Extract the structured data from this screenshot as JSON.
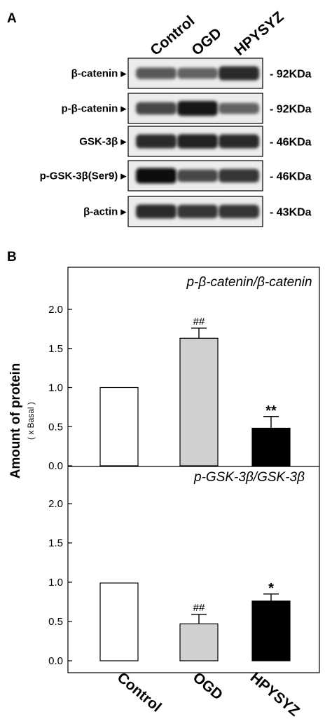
{
  "panel_a": {
    "letter": "A",
    "lanes": [
      "Control",
      "OGD",
      "HPYSYZ"
    ],
    "rows": [
      {
        "label": "β-catenin ▸",
        "kda": "- 92KDa",
        "intensity": [
          0.6,
          0.55,
          0.85
        ]
      },
      {
        "label": "p-β-catenin ▸",
        "kda": "- 92KDa",
        "intensity": [
          0.7,
          0.95,
          0.55
        ]
      },
      {
        "label": "GSK-3β ▸",
        "kda": "- 46KDa",
        "intensity": [
          0.85,
          0.9,
          0.85
        ]
      },
      {
        "label": "p-GSK-3β(Ser9) ▸",
        "kda": "- 46KDa",
        "intensity": [
          1.0,
          0.7,
          0.8
        ]
      },
      {
        "label": "β-actin ▸",
        "kda": "- 43KDa",
        "intensity": [
          0.85,
          0.8,
          0.8
        ]
      }
    ]
  },
  "panel_b": {
    "letter": "B",
    "ylabel": "Amount of protein",
    "ylabel_sub": "( x Basal )",
    "categories": [
      "Control",
      "OGD",
      "HPYSYZ"
    ]
  },
  "chart_data": [
    {
      "type": "bar",
      "title": "p-β-catenin/β-catenin",
      "categories": [
        "Control",
        "OGD",
        "HPYSYZ"
      ],
      "values": [
        1.0,
        1.63,
        0.48
      ],
      "errors": [
        0,
        0.13,
        0.15
      ],
      "annotations": [
        "",
        "##",
        "**"
      ],
      "bar_colors": [
        "#ffffff",
        "#d0d0d0",
        "#000000"
      ],
      "ylim": [
        0,
        2.0
      ],
      "yticks": [
        "0.0",
        "0.5",
        "1.0",
        "1.5",
        "2.0"
      ]
    },
    {
      "type": "bar",
      "title": "p-GSK-3β/GSK-3β",
      "categories": [
        "Control",
        "OGD",
        "HPYSYZ"
      ],
      "values": [
        0.99,
        0.47,
        0.76
      ],
      "errors": [
        0,
        0.12,
        0.09
      ],
      "annotations": [
        "",
        "##",
        "*"
      ],
      "bar_colors": [
        "#ffffff",
        "#d0d0d0",
        "#000000"
      ],
      "ylim": [
        0,
        2.0
      ],
      "yticks": [
        "0.0",
        "0.5",
        "1.0",
        "1.5",
        "2.0"
      ]
    }
  ]
}
